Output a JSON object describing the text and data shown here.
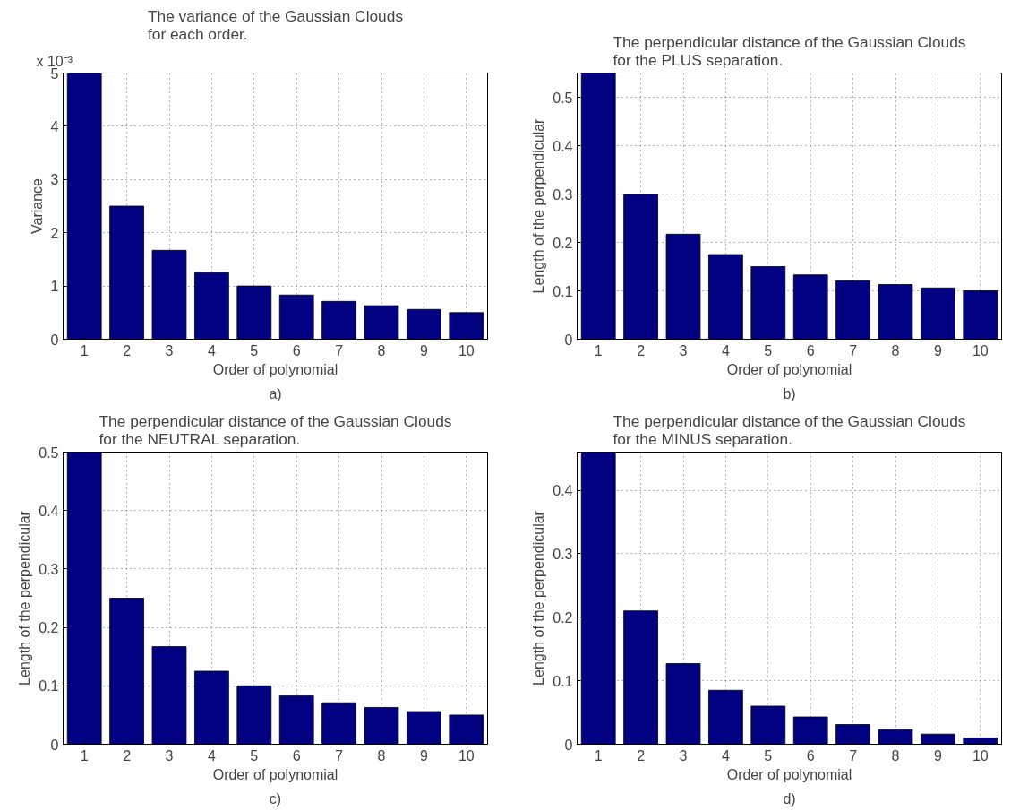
{
  "chart_data": [
    {
      "type": "bar",
      "title": "The variance of the Gaussian Clouds\nfor each order.",
      "xlabel": "Order of polynomial",
      "ylabel": "Variance",
      "categories": [
        "1",
        "2",
        "3",
        "4",
        "5",
        "6",
        "7",
        "8",
        "9",
        "10"
      ],
      "series": [
        {
          "color": "#000080",
          "values": [
            5,
            2.5,
            1.67,
            1.25,
            1,
            0.83,
            0.71,
            0.63,
            0.56,
            0.5
          ]
        }
      ],
      "ylim": [
        0,
        5
      ],
      "yticks": [
        0,
        1,
        2,
        3,
        4,
        5
      ],
      "grid": true,
      "annotations": [
        "x 10⁻³",
        "a)"
      ]
    },
    {
      "type": "bar",
      "title": "The perpendicular distance of the Gaussian Clouds\nfor the PLUS separation.",
      "xlabel": "Order of polynomial",
      "ylabel": "Length of the perpendicular",
      "categories": [
        "1",
        "2",
        "3",
        "4",
        "5",
        "6",
        "7",
        "8",
        "9",
        "10"
      ],
      "series": [
        {
          "color": "#000080",
          "values": [
            0.55,
            0.3,
            0.217,
            0.175,
            0.15,
            0.133,
            0.121,
            0.113,
            0.106,
            0.1
          ]
        }
      ],
      "ylim": [
        0,
        0.55
      ],
      "yticks": [
        0,
        0.1,
        0.2,
        0.3,
        0.4,
        0.5
      ],
      "grid": true,
      "annotations": [
        "b)"
      ]
    },
    {
      "type": "bar",
      "title": "The perpendicular distance of the Gaussian Clouds\nfor the NEUTRAL separation.",
      "xlabel": "Order of polynomial",
      "ylabel": "Length of the perpendicular",
      "categories": [
        "1",
        "2",
        "3",
        "4",
        "5",
        "6",
        "7",
        "8",
        "9",
        "10"
      ],
      "series": [
        {
          "color": "#000080",
          "values": [
            0.5,
            0.25,
            0.167,
            0.125,
            0.1,
            0.083,
            0.071,
            0.063,
            0.056,
            0.05
          ]
        }
      ],
      "ylim": [
        0,
        0.5
      ],
      "yticks": [
        0,
        0.1,
        0.2,
        0.3,
        0.4,
        0.5
      ],
      "grid": true,
      "annotations": [
        "c)"
      ]
    },
    {
      "type": "bar",
      "title": "The perpendicular distance of the Gaussian Clouds\nfor the MINUS separation.",
      "xlabel": "Order of polynomial",
      "ylabel": "Length of the perpendicular",
      "categories": [
        "1",
        "2",
        "3",
        "4",
        "5",
        "6",
        "7",
        "8",
        "9",
        "10"
      ],
      "series": [
        {
          "color": "#000080",
          "values": [
            0.46,
            0.21,
            0.127,
            0.085,
            0.06,
            0.043,
            0.031,
            0.023,
            0.016,
            0.01
          ]
        }
      ],
      "ylim": [
        0,
        0.46
      ],
      "yticks": [
        0,
        0.1,
        0.2,
        0.3,
        0.4
      ],
      "grid": true,
      "annotations": [
        "d)"
      ]
    }
  ]
}
